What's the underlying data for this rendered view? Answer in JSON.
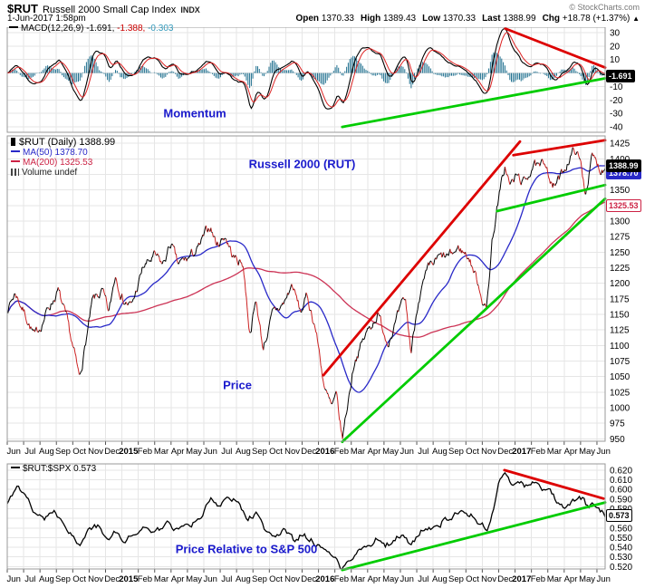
{
  "header": {
    "symbol": "$RUT",
    "name": "Russell 2000 Small Cap Index",
    "exchange": "INDX",
    "copyright": "© StockCharts.com",
    "datetime": "1-Jun-2017 1:58pm",
    "quote": {
      "open_label": "Open",
      "open": "1370.33",
      "high_label": "High",
      "high": "1389.43",
      "low_label": "Low",
      "low": "1370.33",
      "last_label": "Last",
      "last": "1388.99",
      "chg_label": "Chg",
      "chg": "+18.78 (+1.37%)",
      "arrow": "▲"
    }
  },
  "colors": {
    "grid": "#e6e6e6",
    "border": "#999999",
    "macd_line": "#000000",
    "macd_signal": "#dd2222",
    "macd_hist": "#20708f",
    "macd_val1": "#000000",
    "macd_val2": "#cc0000",
    "macd_val3": "#3399bb",
    "price_up": "#000000",
    "price_down": "#cc2222",
    "ma50": "#2929c8",
    "ma200": "#cc3355",
    "trend_green": "#00cc00",
    "trend_red": "#dd0000",
    "annotation_blue": "#1a1acc",
    "ratio_line": "#000000"
  },
  "chart_data": {
    "type": "line",
    "title": "$RUT Russell 2000 Small Cap Index",
    "axis": {
      "months": [
        "Jun",
        "Jul",
        "Aug",
        "Sep",
        "Oct",
        "Nov",
        "Dec",
        "2015",
        "Feb",
        "Mar",
        "Apr",
        "May",
        "Jun",
        "Jul",
        "Aug",
        "Sep",
        "Oct",
        "Nov",
        "Dec",
        "2016",
        "Feb",
        "Mar",
        "Apr",
        "May",
        "Jun",
        "Jul",
        "Aug",
        "Sep",
        "Oct",
        "Nov",
        "Dec",
        "2017",
        "Feb",
        "Mar",
        "Apr",
        "May",
        "Jun"
      ],
      "x_range_months": 36.5
    },
    "momentum": {
      "legend": {
        "label": "MACD(12,26,9)",
        "v1": "-1.691,",
        "v2": "-1.388,",
        "v3": "-0.303"
      },
      "annotation": {
        "text": "Momentum",
        "t": 11.45,
        "v": -30
      },
      "ylim": [
        -44,
        34
      ],
      "yticks": [
        30,
        20,
        10,
        0,
        -10,
        -20,
        -30,
        -40
      ],
      "box": {
        "label": "-1.691",
        "value": -1.691
      },
      "trendlines": [
        {
          "color": "#00cc00",
          "p": [
            [
              20.45,
              -40
            ],
            [
              36.5,
              -4
            ]
          ]
        },
        {
          "color": "#dd0000",
          "p": [
            [
              30.4,
              33
            ],
            [
              36.5,
              4
            ]
          ]
        }
      ],
      "macd_params": [
        12,
        26,
        9
      ]
    },
    "price": {
      "legend": {
        "main": "$RUT (Daily) 1388.99",
        "ma50": "MA(50) 1378.70",
        "ma200": "MA(200) 1325.53",
        "volume": "Volume undef"
      },
      "annotations": [
        {
          "text": "Russell 2000 (RUT)",
          "t": 18.0,
          "v": 1392
        },
        {
          "text": "Price",
          "t": 14.05,
          "v": 1037
        }
      ],
      "ylim": [
        946,
        1437
      ],
      "yticks": [
        1425,
        1400,
        1375,
        1350,
        1325,
        1300,
        1275,
        1250,
        1225,
        1200,
        1175,
        1150,
        1125,
        1100,
        1075,
        1050,
        1025,
        1000,
        975,
        950
      ],
      "boxes": [
        {
          "label": "1388.99",
          "value": 1388.99,
          "bg": "#000000",
          "fg": "#ffffff",
          "border": "#000000"
        },
        {
          "label": "1378.70",
          "value": 1378.7,
          "bg": "#2929c8",
          "fg": "#ffffff",
          "border": "#2929c8"
        },
        {
          "label": "1325.53",
          "value": 1325.53,
          "bg": "#ffffff",
          "fg": "#cc2244",
          "border": "#cc2244"
        }
      ],
      "ma_periods": [
        50,
        200
      ],
      "close_anchors": [
        [
          0,
          1160
        ],
        [
          0.5,
          1185
        ],
        [
          1.2,
          1145
        ],
        [
          1.7,
          1112
        ],
        [
          2.5,
          1160
        ],
        [
          3.1,
          1188
        ],
        [
          3.6,
          1140
        ],
        [
          4.1,
          1085
        ],
        [
          4.4,
          1045
        ],
        [
          5.2,
          1168
        ],
        [
          5.8,
          1186
        ],
        [
          6.2,
          1148
        ],
        [
          6.6,
          1215
        ],
        [
          7.1,
          1175
        ],
        [
          7.6,
          1162
        ],
        [
          8.3,
          1225
        ],
        [
          9.0,
          1242
        ],
        [
          9.5,
          1228
        ],
        [
          10.0,
          1265
        ],
        [
          10.4,
          1228
        ],
        [
          11.0,
          1238
        ],
        [
          11.7,
          1256
        ],
        [
          12.4,
          1292
        ],
        [
          12.8,
          1262
        ],
        [
          13.3,
          1278
        ],
        [
          13.8,
          1242
        ],
        [
          14.4,
          1232
        ],
        [
          14.8,
          1122
        ],
        [
          15.2,
          1172
        ],
        [
          15.6,
          1097
        ],
        [
          16.2,
          1148
        ],
        [
          16.9,
          1168
        ],
        [
          17.4,
          1198
        ],
        [
          17.9,
          1152
        ],
        [
          18.3,
          1178
        ],
        [
          18.8,
          1132
        ],
        [
          19.4,
          1028
        ],
        [
          19.8,
          998
        ],
        [
          20.1,
          1014
        ],
        [
          20.45,
          948
        ],
        [
          21.2,
          1078
        ],
        [
          22.0,
          1122
        ],
        [
          22.6,
          1152
        ],
        [
          23.2,
          1108
        ],
        [
          23.8,
          1142
        ],
        [
          24.3,
          1172
        ],
        [
          24.65,
          1088
        ],
        [
          25.1,
          1178
        ],
        [
          25.7,
          1218
        ],
        [
          26.3,
          1238
        ],
        [
          27.0,
          1242
        ],
        [
          27.6,
          1256
        ],
        [
          28.2,
          1242
        ],
        [
          28.8,
          1196
        ],
        [
          29.25,
          1156
        ],
        [
          29.6,
          1268
        ],
        [
          29.9,
          1322
        ],
        [
          30.4,
          1388
        ],
        [
          30.7,
          1356
        ],
        [
          31.1,
          1372
        ],
        [
          31.6,
          1360
        ],
        [
          32.1,
          1394
        ],
        [
          32.5,
          1380
        ],
        [
          32.9,
          1396
        ],
        [
          33.3,
          1354
        ],
        [
          33.8,
          1370
        ],
        [
          34.3,
          1402
        ],
        [
          34.7,
          1416
        ],
        [
          35.0,
          1392
        ],
        [
          35.3,
          1347
        ],
        [
          35.7,
          1402
        ],
        [
          36.2,
          1384
        ],
        [
          36.5,
          1389
        ]
      ],
      "trendlines": [
        {
          "color": "#dd0000",
          "p": [
            [
              19.3,
              1052
            ],
            [
              31.3,
              1428
            ]
          ]
        },
        {
          "color": "#dd0000",
          "p": [
            [
              30.9,
              1406
            ],
            [
              36.5,
              1430
            ]
          ]
        },
        {
          "color": "#00cc00",
          "p": [
            [
              20.45,
              945
            ],
            [
              36.5,
              1336
            ]
          ]
        },
        {
          "color": "#00cc00",
          "p": [
            [
              29.9,
              1316
            ],
            [
              36.5,
              1358
            ]
          ]
        }
      ]
    },
    "relative": {
      "legend": {
        "text": "$RUT:$SPX 0.573"
      },
      "annotation": {
        "text": "Price Relative to S&P 500",
        "t": 14.6,
        "v": 0.538
      },
      "ylim": [
        0.5175,
        0.6265
      ],
      "yticks": [
        0.62,
        0.61,
        0.6,
        0.59,
        0.58,
        0.57,
        0.56,
        0.55,
        0.54,
        0.53,
        0.52
      ],
      "box": {
        "label": "0.573",
        "value": 0.573
      },
      "anchors": [
        [
          0,
          0.585
        ],
        [
          0.6,
          0.603
        ],
        [
          1.1,
          0.596
        ],
        [
          1.6,
          0.576
        ],
        [
          2.2,
          0.57
        ],
        [
          2.8,
          0.578
        ],
        [
          3.3,
          0.569
        ],
        [
          3.9,
          0.552
        ],
        [
          4.4,
          0.543
        ],
        [
          5.0,
          0.558
        ],
        [
          5.5,
          0.562
        ],
        [
          6.1,
          0.548
        ],
        [
          6.6,
          0.556
        ],
        [
          7.2,
          0.545
        ],
        [
          7.8,
          0.555
        ],
        [
          8.4,
          0.561
        ],
        [
          9.1,
          0.557
        ],
        [
          9.8,
          0.566
        ],
        [
          10.3,
          0.558
        ],
        [
          11.0,
          0.562
        ],
        [
          11.8,
          0.572
        ],
        [
          12.4,
          0.59
        ],
        [
          13.0,
          0.585
        ],
        [
          13.5,
          0.592
        ],
        [
          14.1,
          0.585
        ],
        [
          14.7,
          0.568
        ],
        [
          15.2,
          0.578
        ],
        [
          15.7,
          0.558
        ],
        [
          16.3,
          0.552
        ],
        [
          16.9,
          0.56
        ],
        [
          17.5,
          0.548
        ],
        [
          18.1,
          0.556
        ],
        [
          18.7,
          0.546
        ],
        [
          19.3,
          0.538
        ],
        [
          19.9,
          0.532
        ],
        [
          20.45,
          0.518
        ],
        [
          21.1,
          0.532
        ],
        [
          21.8,
          0.542
        ],
        [
          22.5,
          0.549
        ],
        [
          23.1,
          0.542
        ],
        [
          23.7,
          0.548
        ],
        [
          24.2,
          0.553
        ],
        [
          24.65,
          0.541
        ],
        [
          25.2,
          0.556
        ],
        [
          25.8,
          0.561
        ],
        [
          26.4,
          0.566
        ],
        [
          27.1,
          0.572
        ],
        [
          27.7,
          0.578
        ],
        [
          28.3,
          0.573
        ],
        [
          28.9,
          0.566
        ],
        [
          29.3,
          0.558
        ],
        [
          29.7,
          0.58
        ],
        [
          30.0,
          0.606
        ],
        [
          30.35,
          0.619
        ],
        [
          30.8,
          0.603
        ],
        [
          31.2,
          0.611
        ],
        [
          31.7,
          0.604
        ],
        [
          32.2,
          0.609
        ],
        [
          32.7,
          0.6
        ],
        [
          33.2,
          0.597
        ],
        [
          33.7,
          0.585
        ],
        [
          34.2,
          0.58
        ],
        [
          34.7,
          0.589
        ],
        [
          35.1,
          0.592
        ],
        [
          35.45,
          0.581
        ],
        [
          35.8,
          0.586
        ],
        [
          36.2,
          0.578
        ],
        [
          36.5,
          0.573
        ]
      ],
      "trendlines": [
        {
          "color": "#00cc00",
          "p": [
            [
              20.45,
              0.5165
            ],
            [
              36.5,
              0.5865
            ]
          ]
        },
        {
          "color": "#dd0000",
          "p": [
            [
              30.35,
              0.62
            ],
            [
              36.4,
              0.5905
            ]
          ]
        }
      ]
    }
  }
}
